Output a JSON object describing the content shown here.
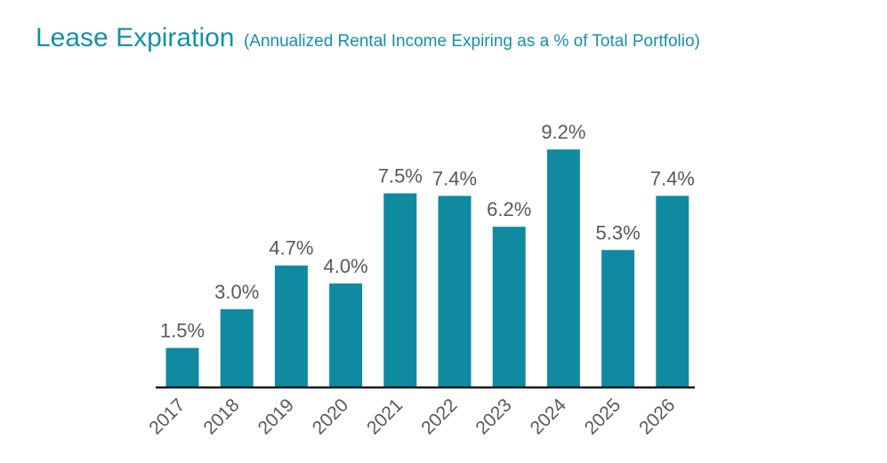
{
  "header": {
    "title": "Lease Expiration",
    "subtitle": "(Annualized Rental Income Expiring as a % of Total Portfolio)"
  },
  "colors": {
    "title": "#1690a6",
    "bar": "#0f8aa1",
    "axis": "#1a1a1a",
    "label": "#595959"
  },
  "chart_data": {
    "type": "bar",
    "title": "Lease Expiration",
    "subtitle": "(Annualized Rental Income Expiring as a % of Total Portfolio)",
    "xlabel": "",
    "ylabel": "",
    "categories": [
      "2017",
      "2018",
      "2019",
      "2020",
      "2021",
      "2022",
      "2023",
      "2024",
      "2025",
      "2026"
    ],
    "values": [
      1.5,
      3.0,
      4.7,
      4.0,
      7.5,
      7.4,
      6.2,
      9.2,
      5.3,
      7.4
    ],
    "value_labels": [
      "1.5%",
      "3.0%",
      "4.7%",
      "4.0%",
      "7.5%",
      "7.4%",
      "6.2%",
      "9.2%",
      "5.3%",
      "7.4%"
    ],
    "ylim": [
      0,
      10
    ],
    "grid": false,
    "legend": "none"
  }
}
